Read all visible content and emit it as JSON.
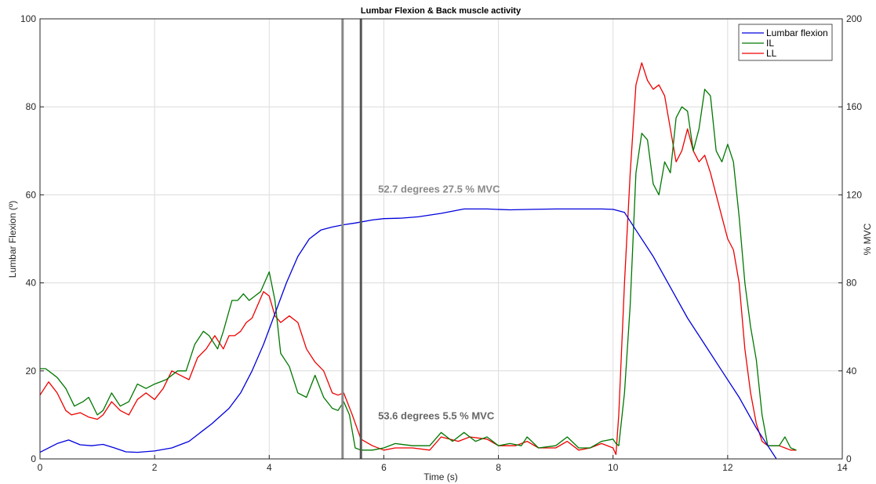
{
  "chart_data": {
    "type": "line",
    "title": "Lumbar Flexion & Back muscle activity",
    "xlabel": "Time (s)",
    "ylabel_left": "Lumbar Flexion (º)",
    "ylabel_right": "% MVC",
    "xlim": [
      0,
      14
    ],
    "ylim_left": [
      0,
      100
    ],
    "ylim_right": [
      0,
      200
    ],
    "xticks": [
      "0",
      "2",
      "4",
      "6",
      "8",
      "10",
      "12",
      "14"
    ],
    "yticks_left": [
      "0",
      "20",
      "40",
      "60",
      "80",
      "100"
    ],
    "yticks_right": [
      "0",
      "40",
      "80",
      "120",
      "160",
      "200"
    ],
    "grid": true,
    "legend_position": "top-right",
    "series": [
      {
        "name": "Lumbar flexion",
        "axis": "left",
        "color": "#0000dd",
        "x": [
          0,
          0.3,
          0.5,
          0.7,
          0.9,
          1.1,
          1.3,
          1.5,
          1.7,
          2.0,
          2.3,
          2.6,
          2.8,
          3.0,
          3.3,
          3.5,
          3.7,
          3.9,
          4.1,
          4.3,
          4.5,
          4.7,
          4.9,
          5.1,
          5.3,
          5.5,
          5.8,
          6.0,
          6.3,
          6.6,
          7.0,
          7.4,
          7.8,
          8.2,
          8.6,
          9.0,
          9.4,
          9.8,
          10.0,
          10.2,
          10.4,
          10.7,
          11.0,
          11.3,
          11.6,
          11.9,
          12.2,
          12.5,
          12.7,
          12.85
        ],
        "y": [
          1.5,
          3.5,
          4.3,
          3.2,
          3.0,
          3.3,
          2.5,
          1.6,
          1.5,
          1.8,
          2.5,
          4.0,
          6.0,
          8.0,
          11.5,
          15.0,
          20.0,
          26.0,
          33.0,
          40.0,
          46.0,
          50.0,
          52.0,
          52.7,
          53.2,
          53.6,
          54.3,
          54.6,
          54.7,
          55.0,
          55.8,
          56.8,
          56.8,
          56.6,
          56.7,
          56.8,
          56.8,
          56.8,
          56.7,
          56.0,
          52.0,
          46.0,
          39.0,
          32.0,
          26.0,
          20.0,
          14.0,
          7.0,
          3.0,
          0
        ]
      },
      {
        "name": "IL",
        "axis": "right",
        "color": "#007700",
        "x": [
          0,
          0.1,
          0.3,
          0.45,
          0.6,
          0.75,
          0.85,
          1.0,
          1.1,
          1.25,
          1.4,
          1.55,
          1.7,
          1.85,
          2.0,
          2.2,
          2.4,
          2.55,
          2.7,
          2.85,
          2.95,
          3.1,
          3.2,
          3.35,
          3.45,
          3.55,
          3.65,
          3.75,
          3.85,
          4.0,
          4.1,
          4.2,
          4.35,
          4.5,
          4.65,
          4.8,
          4.95,
          5.1,
          5.2,
          5.3,
          5.4,
          5.5,
          5.6,
          5.8,
          6.0,
          6.2,
          6.5,
          6.8,
          7.0,
          7.2,
          7.4,
          7.6,
          7.8,
          8.0,
          8.2,
          8.4,
          8.5,
          8.7,
          9.0,
          9.2,
          9.4,
          9.6,
          9.8,
          10.0,
          10.05,
          10.1,
          10.2,
          10.3,
          10.4,
          10.5,
          10.6,
          10.7,
          10.8,
          10.9,
          11.0,
          11.1,
          11.2,
          11.3,
          11.4,
          11.5,
          11.6,
          11.7,
          11.8,
          11.9,
          12.0,
          12.1,
          12.2,
          12.3,
          12.4,
          12.5,
          12.6,
          12.7,
          12.8,
          12.9,
          13.0,
          13.1,
          13.2
        ],
        "y": [
          41,
          41,
          37,
          32,
          24,
          26,
          28,
          20,
          22,
          30,
          24,
          26,
          34,
          32,
          34,
          36,
          40,
          40,
          52,
          58,
          56,
          50,
          58,
          72,
          72,
          75,
          72,
          74,
          76,
          85,
          72,
          48,
          42,
          30,
          28,
          38,
          28,
          23,
          22,
          26,
          20,
          5,
          4,
          4,
          5,
          7,
          6,
          6,
          12,
          8,
          12,
          8,
          10,
          6,
          7,
          6,
          10,
          5,
          6,
          10,
          5,
          5,
          8,
          9,
          7,
          6,
          30,
          70,
          130,
          148,
          145,
          125,
          120,
          135,
          130,
          155,
          160,
          158,
          140,
          150,
          168,
          165,
          140,
          135,
          143,
          135,
          110,
          80,
          60,
          45,
          20,
          6,
          6,
          6,
          10,
          5,
          4
        ]
      },
      {
        "name": "LL",
        "axis": "right",
        "color": "#ee0000",
        "x": [
          0,
          0.15,
          0.3,
          0.45,
          0.55,
          0.7,
          0.85,
          1.0,
          1.1,
          1.25,
          1.4,
          1.55,
          1.7,
          1.85,
          2.0,
          2.15,
          2.3,
          2.45,
          2.6,
          2.75,
          2.9,
          3.05,
          3.2,
          3.3,
          3.4,
          3.5,
          3.6,
          3.7,
          3.8,
          3.9,
          4.0,
          4.1,
          4.2,
          4.35,
          4.5,
          4.65,
          4.8,
          4.95,
          5.1,
          5.2,
          5.3,
          5.45,
          5.6,
          5.8,
          6.0,
          6.2,
          6.5,
          6.8,
          7.0,
          7.3,
          7.5,
          7.8,
          8.0,
          8.3,
          8.5,
          8.7,
          9.0,
          9.2,
          9.4,
          9.6,
          9.8,
          10.0,
          10.05,
          10.1,
          10.2,
          10.3,
          10.4,
          10.5,
          10.6,
          10.7,
          10.8,
          10.9,
          11.0,
          11.1,
          11.2,
          11.3,
          11.4,
          11.5,
          11.6,
          11.7,
          11.8,
          11.9,
          12.0,
          12.1,
          12.2,
          12.3,
          12.4,
          12.5,
          12.6,
          12.7,
          12.8,
          12.9,
          13.0,
          13.1,
          13.2
        ],
        "y": [
          29,
          35,
          30,
          22,
          20,
          21,
          19,
          18,
          20,
          26,
          22,
          20,
          27,
          30,
          27,
          32,
          40,
          38,
          36,
          46,
          50,
          56,
          50,
          56,
          56,
          58,
          62,
          64,
          70,
          76,
          74,
          65,
          62,
          65,
          62,
          50,
          44,
          40,
          30,
          29,
          30,
          20,
          9,
          6,
          4,
          5,
          5,
          4,
          10,
          8,
          10,
          9,
          6,
          6,
          8,
          5,
          5,
          8,
          4,
          5,
          7,
          5,
          2,
          20,
          80,
          130,
          170,
          180,
          172,
          168,
          170,
          165,
          150,
          135,
          140,
          150,
          140,
          135,
          138,
          130,
          120,
          110,
          100,
          95,
          80,
          50,
          30,
          16,
          8,
          6,
          6,
          6,
          5,
          4,
          4
        ]
      }
    ],
    "vlines": [
      {
        "x": 5.28,
        "color": "#888888"
      },
      {
        "x": 5.6,
        "color": "#555555"
      }
    ],
    "annotations": [
      {
        "text": "52.7 degrees 27.5 % MVC",
        "x": 5.9,
        "y": 60.5,
        "color": "#8a8a8a"
      },
      {
        "text": "53.6 degrees 5.5 % MVC",
        "x": 5.9,
        "y": 9.0,
        "color": "#666666"
      }
    ]
  }
}
